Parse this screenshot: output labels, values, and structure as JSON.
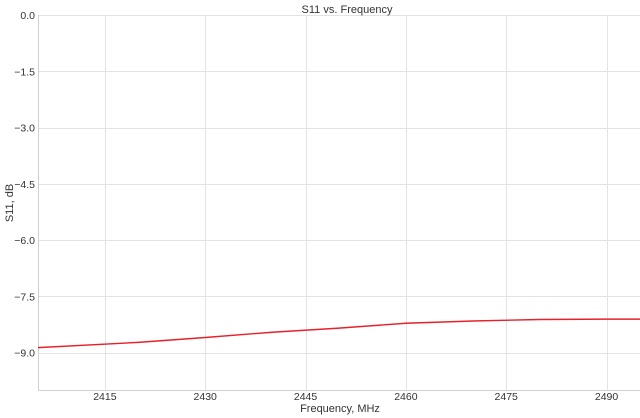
{
  "chart_data": {
    "type": "line",
    "title": "S11 vs. Frequency",
    "xlabel": "Frequency, MHz",
    "ylabel": "S11, dB",
    "xlim": [
      2405,
      2495
    ],
    "ylim": [
      -10,
      0
    ],
    "xticks": [
      2415,
      2430,
      2445,
      2460,
      2475,
      2490
    ],
    "yticks": [
      0.0,
      -1.5,
      -3.0,
      -4.5,
      -6.0,
      -7.5,
      -9.0
    ],
    "ytick_labels": [
      "0.0",
      "−1.5",
      "−3.0",
      "−4.5",
      "−6.0",
      "−7.5",
      "−9.0"
    ],
    "grid": true,
    "series": [
      {
        "color": "#e8202a",
        "x": [
          2405,
          2420,
          2430,
          2440,
          2450,
          2460,
          2470,
          2480,
          2490,
          2495
        ],
        "y": [
          -8.87,
          -8.73,
          -8.6,
          -8.46,
          -8.35,
          -8.22,
          -8.16,
          -8.12,
          -8.11,
          -8.11
        ]
      }
    ]
  }
}
